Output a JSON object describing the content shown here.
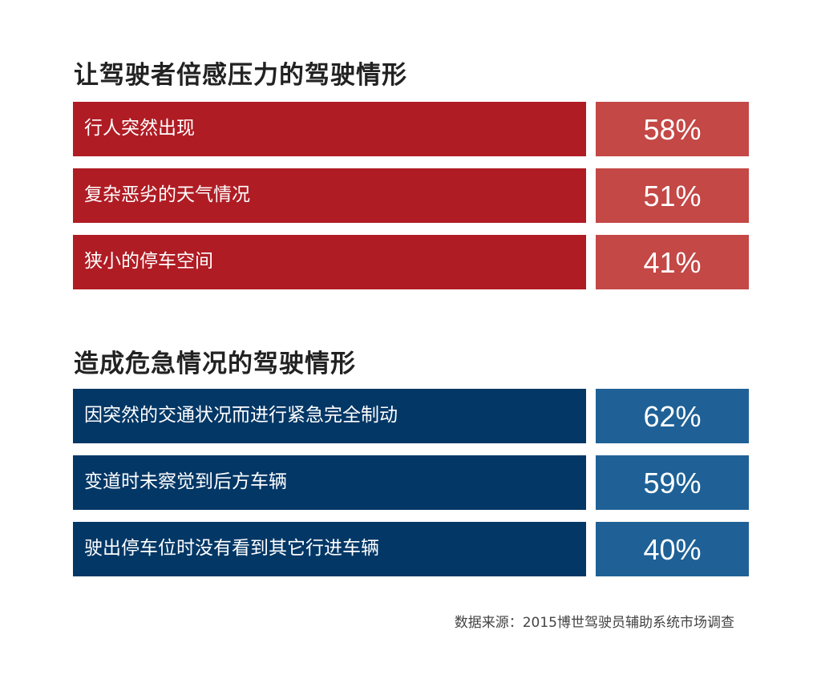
{
  "chart_data": [
    {
      "type": "table",
      "title": "让驾驶者倍感压力的驾驶情形",
      "colors": {
        "label_bg": "#B01C24",
        "value_bg": "#C34846"
      },
      "rows": [
        {
          "label": "行人突然出现",
          "value": "58%"
        },
        {
          "label": "复杂恶劣的天气情况",
          "value": "51%"
        },
        {
          "label": "狭小的停车空间",
          "value": "41%"
        }
      ]
    },
    {
      "type": "table",
      "title": "造成危急情况的驾驶情形",
      "colors": {
        "label_bg": "#033766",
        "value_bg": "#1F6196"
      },
      "rows": [
        {
          "label": "因突然的交通状况而进行紧急完全制动",
          "value": "62%"
        },
        {
          "label": "变道时未察觉到后方车辆",
          "value": "59%"
        },
        {
          "label": "驶出停车位时没有看到其它行进车辆",
          "value": "40%"
        }
      ]
    }
  ],
  "source": "数据来源：2015博世驾驶员辅助系统市场调查"
}
